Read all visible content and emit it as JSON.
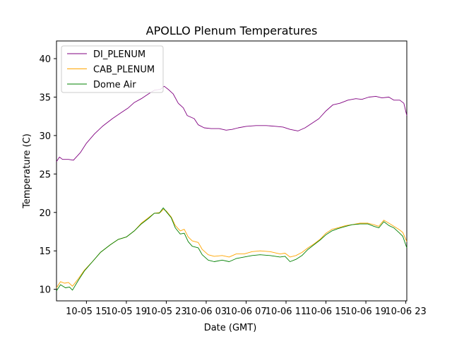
{
  "chart_data": {
    "type": "line",
    "title": "APOLLO Plenum Temperatures",
    "xlabel": "Date (GMT)",
    "ylabel": "Temperature (C)",
    "x_unit": "hours since 10-05 12:00 GMT",
    "xlim": [
      0,
      35.1
    ],
    "ylim": [
      8.5,
      42.3
    ],
    "x_ticks": [
      {
        "value": 3,
        "label": "10-05 15"
      },
      {
        "value": 7,
        "label": "10-05 19"
      },
      {
        "value": 11,
        "label": "10-05 23"
      },
      {
        "value": 15,
        "label": "10-06 03"
      },
      {
        "value": 19,
        "label": "10-06 07"
      },
      {
        "value": 23,
        "label": "10-06 11"
      },
      {
        "value": 27,
        "label": "10-06 15"
      },
      {
        "value": 31,
        "label": "10-06 19"
      },
      {
        "value": 35,
        "label": "10-06 23"
      }
    ],
    "y_ticks": [
      10,
      15,
      20,
      25,
      30,
      35,
      40
    ],
    "grid": false,
    "legend": "top-left",
    "series": [
      {
        "name": "DI_PLENUM",
        "color": "#800080",
        "points": [
          [
            0.0,
            26.6
          ],
          [
            0.3,
            27.2
          ],
          [
            0.6,
            26.9
          ],
          [
            1.2,
            26.9
          ],
          [
            1.7,
            26.8
          ],
          [
            2.4,
            27.8
          ],
          [
            3.0,
            29.0
          ],
          [
            3.8,
            30.2
          ],
          [
            4.6,
            31.2
          ],
          [
            5.6,
            32.2
          ],
          [
            6.4,
            32.9
          ],
          [
            7.2,
            33.6
          ],
          [
            7.8,
            34.3
          ],
          [
            8.5,
            34.8
          ],
          [
            9.2,
            35.4
          ],
          [
            9.8,
            35.9
          ],
          [
            10.4,
            36.0
          ],
          [
            10.8,
            36.4
          ],
          [
            11.2,
            36.0
          ],
          [
            11.7,
            35.4
          ],
          [
            12.2,
            34.2
          ],
          [
            12.7,
            33.6
          ],
          [
            13.1,
            32.6
          ],
          [
            13.8,
            32.2
          ],
          [
            14.2,
            31.4
          ],
          [
            14.8,
            31.0
          ],
          [
            15.5,
            30.9
          ],
          [
            16.3,
            30.9
          ],
          [
            17.0,
            30.7
          ],
          [
            17.6,
            30.8
          ],
          [
            18.2,
            31.0
          ],
          [
            19.0,
            31.2
          ],
          [
            20.0,
            31.3
          ],
          [
            21.0,
            31.3
          ],
          [
            22.0,
            31.2
          ],
          [
            22.7,
            31.1
          ],
          [
            23.4,
            30.8
          ],
          [
            24.2,
            30.6
          ],
          [
            24.9,
            31.0
          ],
          [
            25.6,
            31.6
          ],
          [
            26.3,
            32.2
          ],
          [
            27.0,
            33.2
          ],
          [
            27.7,
            34.0
          ],
          [
            28.4,
            34.2
          ],
          [
            29.2,
            34.6
          ],
          [
            30.0,
            34.8
          ],
          [
            30.6,
            34.7
          ],
          [
            31.3,
            35.0
          ],
          [
            32.0,
            35.1
          ],
          [
            32.6,
            34.9
          ],
          [
            33.3,
            35.0
          ],
          [
            33.8,
            34.6
          ],
          [
            34.4,
            34.6
          ],
          [
            34.8,
            34.2
          ],
          [
            35.1,
            32.6
          ]
        ]
      },
      {
        "name": "CAB_PLENUM",
        "color": "#ffa500",
        "points": [
          [
            0.0,
            10.2
          ],
          [
            0.4,
            11.0
          ],
          [
            0.8,
            10.8
          ],
          [
            1.2,
            10.9
          ],
          [
            1.6,
            10.4
          ],
          [
            2.2,
            11.4
          ],
          [
            2.8,
            12.5
          ],
          [
            3.6,
            13.6
          ],
          [
            4.4,
            14.8
          ],
          [
            5.4,
            15.8
          ],
          [
            6.2,
            16.5
          ],
          [
            7.0,
            16.8
          ],
          [
            7.8,
            17.6
          ],
          [
            8.5,
            18.6
          ],
          [
            9.2,
            19.3
          ],
          [
            9.8,
            19.9
          ],
          [
            10.4,
            20.0
          ],
          [
            10.7,
            20.4
          ],
          [
            11.0,
            20.2
          ],
          [
            11.5,
            19.4
          ],
          [
            11.9,
            18.3
          ],
          [
            12.4,
            17.6
          ],
          [
            12.8,
            17.8
          ],
          [
            13.2,
            16.8
          ],
          [
            13.6,
            16.3
          ],
          [
            14.2,
            16.1
          ],
          [
            14.6,
            15.2
          ],
          [
            15.2,
            14.5
          ],
          [
            15.8,
            14.3
          ],
          [
            16.6,
            14.4
          ],
          [
            17.3,
            14.2
          ],
          [
            18.0,
            14.6
          ],
          [
            18.8,
            14.6
          ],
          [
            19.6,
            14.9
          ],
          [
            20.4,
            15.0
          ],
          [
            21.4,
            14.9
          ],
          [
            22.4,
            14.6
          ],
          [
            22.9,
            14.7
          ],
          [
            23.4,
            14.2
          ],
          [
            24.0,
            14.4
          ],
          [
            24.6,
            14.8
          ],
          [
            25.2,
            15.4
          ],
          [
            25.8,
            15.9
          ],
          [
            26.4,
            16.5
          ],
          [
            27.0,
            17.3
          ],
          [
            27.6,
            17.8
          ],
          [
            28.2,
            18.0
          ],
          [
            29.0,
            18.3
          ],
          [
            29.6,
            18.4
          ],
          [
            30.4,
            18.6
          ],
          [
            31.2,
            18.6
          ],
          [
            31.8,
            18.4
          ],
          [
            32.3,
            18.2
          ],
          [
            32.8,
            19.0
          ],
          [
            33.3,
            18.6
          ],
          [
            33.8,
            18.2
          ],
          [
            34.3,
            17.8
          ],
          [
            34.7,
            17.4
          ],
          [
            35.1,
            16.2
          ]
        ]
      },
      {
        "name": "Dome Air",
        "color": "#008000",
        "points": [
          [
            0.0,
            9.8
          ],
          [
            0.4,
            10.6
          ],
          [
            0.9,
            10.2
          ],
          [
            1.3,
            10.3
          ],
          [
            1.6,
            9.9
          ],
          [
            2.2,
            11.2
          ],
          [
            2.8,
            12.4
          ],
          [
            3.6,
            13.6
          ],
          [
            4.4,
            14.8
          ],
          [
            5.4,
            15.8
          ],
          [
            6.2,
            16.5
          ],
          [
            7.0,
            16.8
          ],
          [
            7.8,
            17.6
          ],
          [
            8.5,
            18.5
          ],
          [
            9.2,
            19.2
          ],
          [
            9.8,
            19.9
          ],
          [
            10.3,
            19.9
          ],
          [
            10.7,
            20.6
          ],
          [
            11.0,
            20.1
          ],
          [
            11.5,
            19.3
          ],
          [
            11.9,
            18.0
          ],
          [
            12.4,
            17.2
          ],
          [
            12.8,
            17.3
          ],
          [
            13.2,
            16.2
          ],
          [
            13.6,
            15.6
          ],
          [
            14.2,
            15.4
          ],
          [
            14.6,
            14.5
          ],
          [
            15.2,
            13.8
          ],
          [
            15.8,
            13.6
          ],
          [
            16.6,
            13.8
          ],
          [
            17.3,
            13.6
          ],
          [
            18.0,
            14.0
          ],
          [
            18.8,
            14.2
          ],
          [
            19.6,
            14.4
          ],
          [
            20.4,
            14.5
          ],
          [
            21.4,
            14.4
          ],
          [
            22.4,
            14.2
          ],
          [
            22.9,
            14.3
          ],
          [
            23.4,
            13.6
          ],
          [
            24.0,
            13.9
          ],
          [
            24.6,
            14.4
          ],
          [
            25.2,
            15.2
          ],
          [
            25.8,
            15.8
          ],
          [
            26.4,
            16.4
          ],
          [
            27.0,
            17.1
          ],
          [
            27.6,
            17.6
          ],
          [
            28.2,
            17.9
          ],
          [
            29.0,
            18.2
          ],
          [
            29.6,
            18.4
          ],
          [
            30.4,
            18.5
          ],
          [
            31.2,
            18.5
          ],
          [
            31.8,
            18.2
          ],
          [
            32.3,
            18.0
          ],
          [
            32.8,
            18.8
          ],
          [
            33.3,
            18.3
          ],
          [
            33.8,
            18.0
          ],
          [
            34.3,
            17.4
          ],
          [
            34.7,
            16.9
          ],
          [
            35.1,
            15.4
          ]
        ]
      }
    ]
  }
}
